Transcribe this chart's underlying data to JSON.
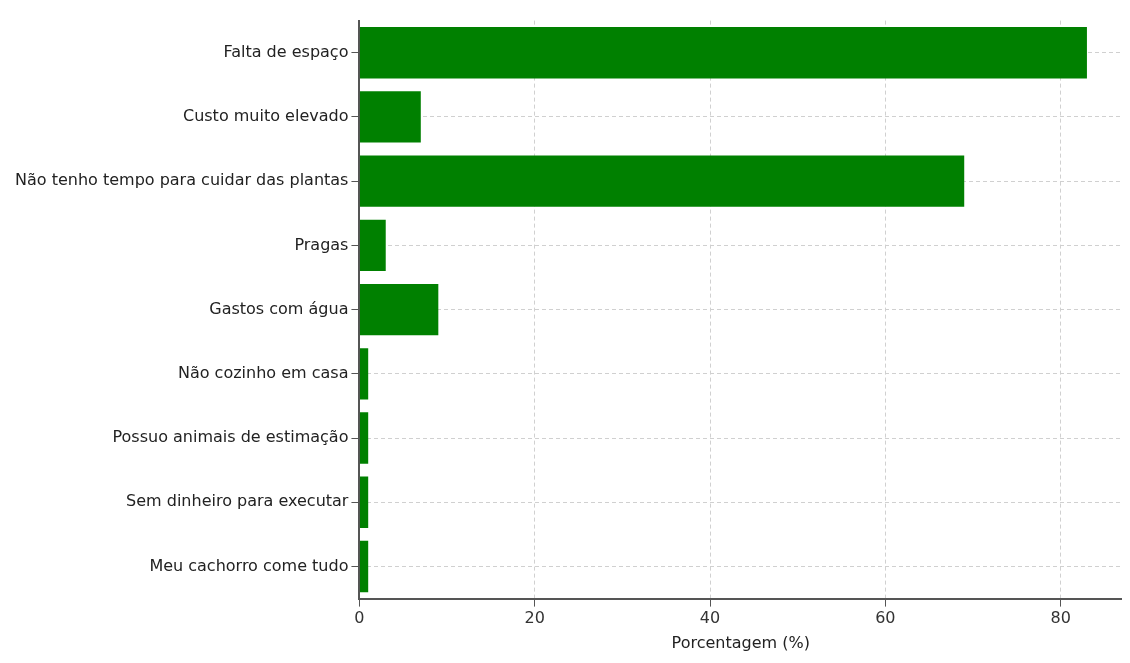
{
  "chart_data": {
    "type": "bar",
    "orientation": "horizontal",
    "xlabel": "Porcentagem (%)",
    "categories": [
      "Falta de espaço",
      "Custo muito elevado",
      "Não tenho tempo para cuidar das plantas",
      "Pragas",
      "Gastos com água",
      "Não cozinho em casa",
      "Possuo animais de estimação",
      "Sem dinheiro para executar",
      "Meu cachorro come tudo"
    ],
    "values": [
      83,
      7,
      69,
      3,
      9,
      1,
      1,
      1,
      1
    ],
    "color": "#008000",
    "xlim": [
      0,
      87
    ],
    "xticks": [
      0,
      20,
      40,
      60,
      80
    ],
    "grid": true,
    "legend": false
  }
}
